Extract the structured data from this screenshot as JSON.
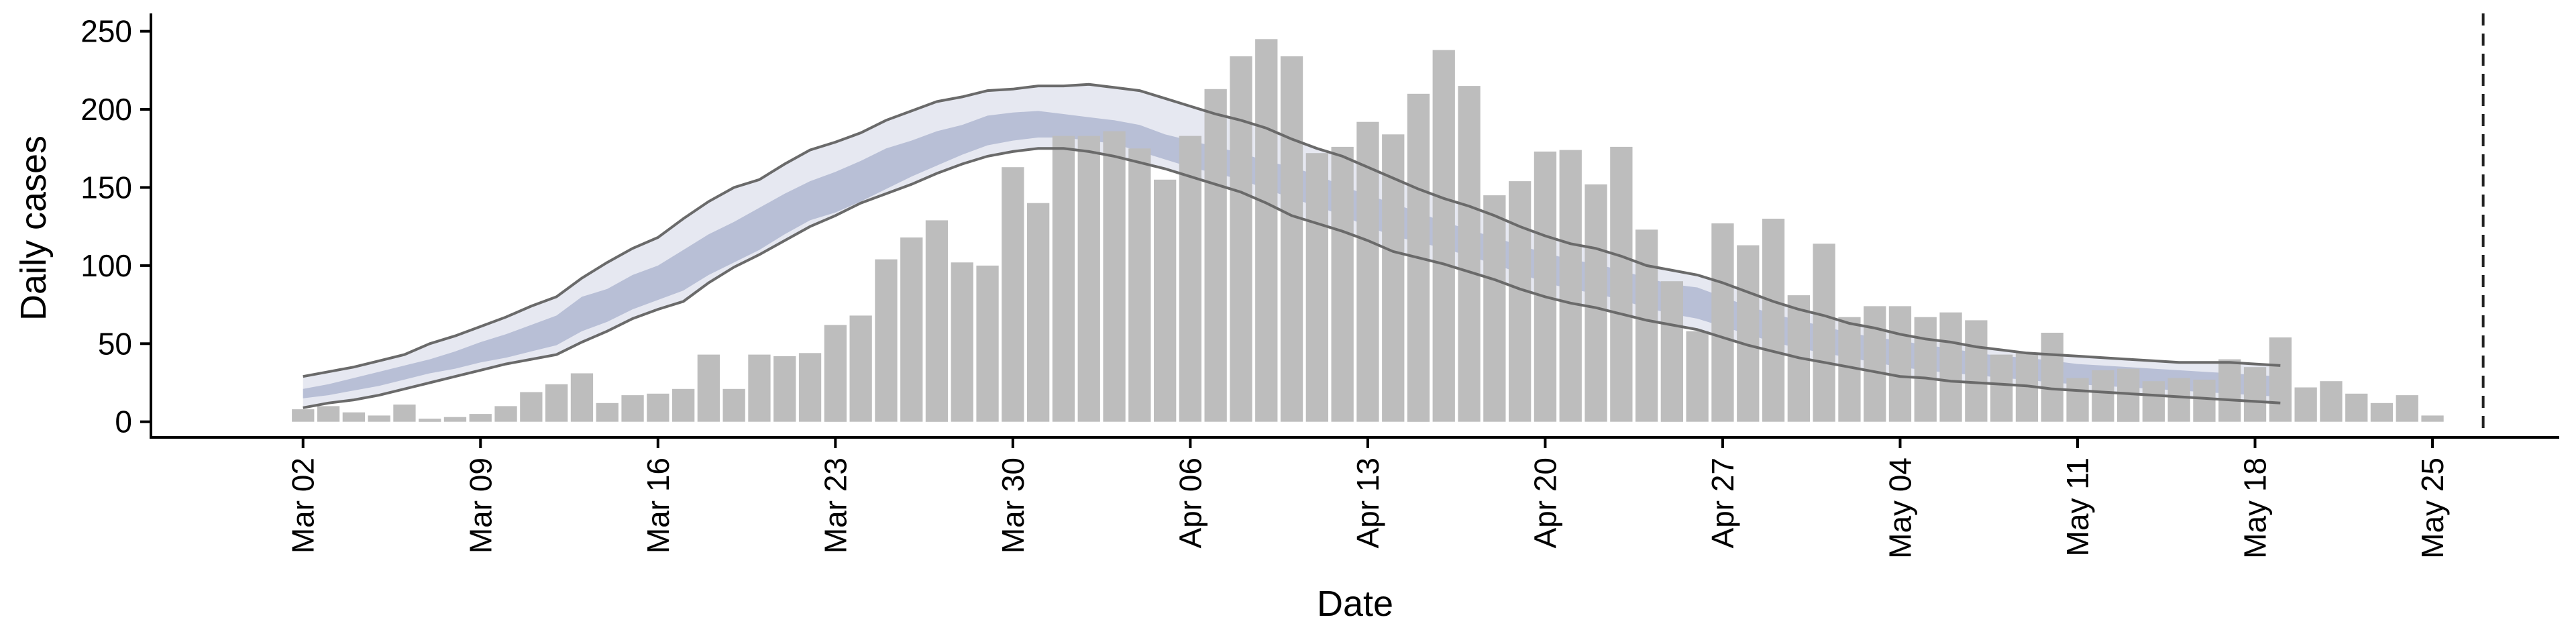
{
  "chart_data": {
    "type": "bar",
    "xlabel": "Date",
    "ylabel": "Daily cases",
    "ylim": [
      -10,
      258
    ],
    "yticks": [
      0,
      50,
      100,
      150,
      200,
      250
    ],
    "xlim": [
      "2020-02-25",
      "2020-05-30"
    ],
    "xticks": [
      {
        "date": "2020-03-02",
        "label": "Mar 02"
      },
      {
        "date": "2020-03-09",
        "label": "Mar 09"
      },
      {
        "date": "2020-03-16",
        "label": "Mar 16"
      },
      {
        "date": "2020-03-23",
        "label": "Mar 23"
      },
      {
        "date": "2020-03-30",
        "label": "Mar 30"
      },
      {
        "date": "2020-04-06",
        "label": "Apr 06"
      },
      {
        "date": "2020-04-13",
        "label": "Apr 13"
      },
      {
        "date": "2020-04-20",
        "label": "Apr 20"
      },
      {
        "date": "2020-04-27",
        "label": "Apr 27"
      },
      {
        "date": "2020-05-04",
        "label": "May 04"
      },
      {
        "date": "2020-05-11",
        "label": "May 11"
      },
      {
        "date": "2020-05-18",
        "label": "May 18"
      },
      {
        "date": "2020-05-25",
        "label": "May 25"
      }
    ],
    "vline_date": "2020-05-27",
    "bars": {
      "start_date": "2020-03-02",
      "values": [
        8,
        10,
        6,
        4,
        11,
        2,
        3,
        5,
        10,
        19,
        24,
        31,
        12,
        17,
        18,
        21,
        43,
        21,
        43,
        42,
        44,
        62,
        68,
        104,
        118,
        129,
        102,
        100,
        163,
        140,
        183,
        183,
        186,
        175,
        155,
        183,
        213,
        234,
        245,
        234,
        172,
        176,
        192,
        184,
        210,
        238,
        215,
        145,
        154,
        173,
        174,
        152,
        176,
        123,
        90,
        58,
        127,
        113,
        130,
        81,
        114,
        67,
        74,
        74,
        67,
        70,
        65,
        43,
        44,
        57,
        28,
        33,
        34,
        26,
        28,
        27,
        40,
        35,
        54,
        22,
        26,
        18,
        12,
        17,
        4
      ]
    },
    "model": {
      "start_date": "2020-03-02",
      "band_outer_upper": [
        29,
        32,
        35,
        39,
        43,
        50,
        55,
        61,
        67,
        74,
        80,
        92,
        102,
        111,
        118,
        130,
        141,
        150,
        155,
        165,
        174,
        179,
        185,
        193,
        199,
        205,
        208,
        212,
        213,
        215,
        215,
        216,
        214,
        212,
        207,
        202,
        197,
        193,
        188,
        181,
        175,
        170,
        163,
        156,
        149,
        143,
        138,
        132,
        125,
        119,
        114,
        111,
        106,
        100,
        97,
        94,
        89,
        83,
        77,
        72,
        68,
        63,
        60,
        56,
        53,
        51,
        48,
        46,
        44,
        43,
        42,
        41,
        40,
        39,
        38,
        38,
        38,
        37,
        36
      ],
      "band_outer_lower": [
        9,
        12,
        14,
        17,
        21,
        25,
        29,
        33,
        37,
        40,
        43,
        51,
        58,
        66,
        72,
        77,
        89,
        99,
        107,
        116,
        125,
        132,
        140,
        146,
        152,
        159,
        165,
        170,
        173,
        175,
        175,
        173,
        170,
        166,
        162,
        157,
        152,
        147,
        140,
        132,
        127,
        122,
        116,
        109,
        105,
        101,
        96,
        91,
        85,
        80,
        76,
        73,
        69,
        65,
        62,
        59,
        54,
        49,
        45,
        41,
        38,
        35,
        32,
        29,
        28,
        26,
        25,
        24,
        23,
        21,
        20,
        19,
        18,
        17,
        16,
        15,
        14,
        13,
        12
      ],
      "band_inner_upper": [
        21,
        24,
        28,
        32,
        36,
        40,
        45,
        51,
        56,
        62,
        68,
        80,
        85,
        94,
        100,
        110,
        120,
        128,
        137,
        146,
        154,
        160,
        167,
        175,
        180,
        186,
        190,
        196,
        198,
        199,
        197,
        195,
        193,
        190,
        184,
        180,
        176,
        172,
        167,
        163,
        158,
        151,
        145,
        140,
        134,
        128,
        123,
        118,
        113,
        108,
        104,
        101,
        97,
        92,
        88,
        86,
        80,
        74,
        69,
        65,
        61,
        57,
        54,
        52,
        49,
        47,
        44,
        42,
        41,
        39,
        37,
        36,
        35,
        34,
        33,
        32,
        31,
        30,
        29
      ],
      "band_inner_lower": [
        15,
        17,
        20,
        23,
        27,
        31,
        34,
        38,
        41,
        45,
        49,
        58,
        64,
        72,
        78,
        84,
        94,
        102,
        110,
        120,
        129,
        134,
        141,
        149,
        157,
        164,
        171,
        177,
        180,
        182,
        182,
        180,
        178,
        173,
        168,
        163,
        159,
        155,
        149,
        143,
        138,
        132,
        125,
        119,
        115,
        111,
        106,
        101,
        95,
        89,
        85,
        82,
        78,
        73,
        69,
        66,
        61,
        56,
        51,
        47,
        44,
        41,
        38,
        35,
        33,
        31,
        30,
        28,
        27,
        25,
        24,
        23,
        22,
        21,
        20,
        19,
        18,
        17,
        16
      ],
      "band_outer_color": "#e6e8f1",
      "band_inner_color": "#b8bfd6",
      "line_color": "#6a6a6a"
    },
    "bar_color": "#bdbdbd",
    "grid": false,
    "legend": "none"
  }
}
